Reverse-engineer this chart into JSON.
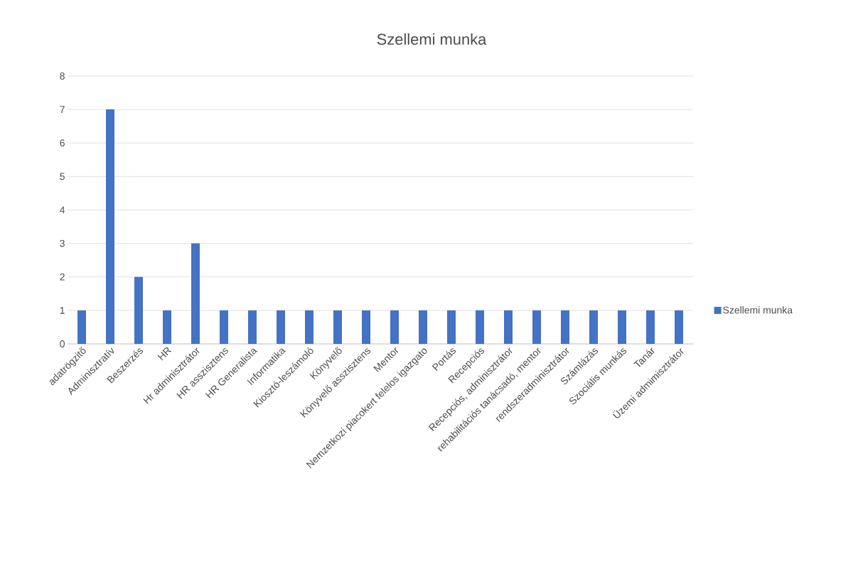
{
  "chart_data": {
    "type": "bar",
    "title": "Szellemi munka",
    "categories": [
      "adatrögzitő",
      "Adminisztratív",
      "Beszerzés",
      "HR",
      "Hr adminisztrátor",
      "HR asszisztens",
      "HR Generalista",
      "Informatika",
      "Kiosztó-leszámoló",
      "Könyvelő",
      "Könyvelő asszisztens",
      "Mentor",
      "Nemzetkozi piacokert felelos igazgato",
      "Portás",
      "Recepciós",
      "Recepciós, adminisztrátor",
      "rehabilitációs tanácsadó, mentor",
      "rendszeradminisztrátor",
      "Számlázás",
      "Szociális munkás",
      "Tanár",
      "Üzemi admimisztrátor"
    ],
    "series": [
      {
        "name": "Szellemi munka",
        "color": "#4472c4",
        "values": [
          1,
          7,
          2,
          1,
          3,
          1,
          1,
          1,
          1,
          1,
          1,
          1,
          1,
          1,
          1,
          1,
          1,
          1,
          1,
          1,
          1,
          1
        ]
      }
    ],
    "ylim": [
      0,
      8
    ],
    "yticks": [
      0,
      1,
      2,
      3,
      4,
      5,
      6,
      7,
      8
    ],
    "grid": "y",
    "legend": "right"
  }
}
